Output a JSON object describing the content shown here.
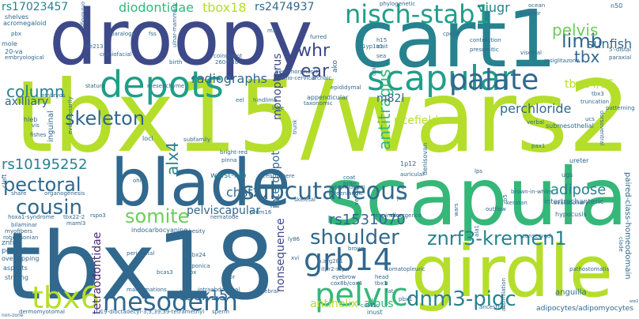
{
  "palette": {
    "yellow_green": "#b5de2b",
    "light_green": "#6ccd5a",
    "green": "#35b779",
    "teal": "#1f9e89",
    "blue_teal": "#26828e",
    "blue": "#31688e",
    "indigo": "#3e4989",
    "purple": "#482878",
    "dark_purple": "#440154"
  },
  "words": [
    {
      "text": "tbx15/wars2",
      "color": "#b5de2b"
    },
    {
      "text": "scapula",
      "color": "#35b779"
    },
    {
      "text": "tbx18",
      "color": "#31688e"
    },
    {
      "text": "droopy",
      "color": "#3e4989"
    },
    {
      "text": "cart1",
      "color": "#26828e"
    },
    {
      "text": "blade",
      "color": "#31688e"
    },
    {
      "text": "girdle",
      "color": "#b5de2b"
    },
    {
      "text": "depots",
      "color": "#1f9e89"
    },
    {
      "text": "scapular",
      "color": "#1f9e89"
    },
    {
      "text": "nisch-stab1",
      "color": "#1f9e89"
    },
    {
      "text": "palate",
      "color": "#31688e"
    },
    {
      "text": "subcutaneous",
      "color": "#31688e"
    },
    {
      "text": "mesoderm",
      "color": "#31688e"
    },
    {
      "text": "pelvic",
      "color": "#35b779"
    },
    {
      "text": "grb14",
      "color": "#31688e"
    },
    {
      "text": "tbx6",
      "color": "#b5de2b"
    },
    {
      "text": "shoulder",
      "color": "#31688e"
    },
    {
      "text": "znrf3-kremen1",
      "color": "#26828e"
    },
    {
      "text": "dnm3-pigc",
      "color": "#26828e"
    },
    {
      "text": "cousin",
      "color": "#31688e"
    },
    {
      "text": "pectoral",
      "color": "#31688e"
    },
    {
      "text": "somite",
      "color": "#6ccd5a"
    },
    {
      "text": "skeleton",
      "color": "#31688e"
    },
    {
      "text": "column",
      "color": "#26828e"
    },
    {
      "text": "limb",
      "color": "#31688e"
    },
    {
      "text": "pelvis",
      "color": "#6ccd5a"
    },
    {
      "text": "whr",
      "color": "#3e4989"
    },
    {
      "text": "ear",
      "color": "#3e4989"
    },
    {
      "text": "radiographs",
      "color": "#31688e"
    },
    {
      "text": "tbx",
      "color": "#31688e"
    },
    {
      "text": "sunfish",
      "color": "#31688e"
    },
    {
      "text": "antitragus",
      "color": "#35b779"
    },
    {
      "text": "adipose",
      "color": "#26828e"
    },
    {
      "text": "alx4",
      "color": "#26828e"
    },
    {
      "text": "chst2",
      "color": "#31688e"
    },
    {
      "text": "tbox15",
      "color": "#31688e"
    },
    {
      "text": "rs10195252",
      "color": "#26828e"
    },
    {
      "text": "rs1531070",
      "color": "#31688e"
    },
    {
      "text": "rs17023457",
      "color": "#26828e"
    },
    {
      "text": "diodontidae",
      "color": "#35b779"
    },
    {
      "text": "tbox18",
      "color": "#b5de2b"
    },
    {
      "text": "rs2474937",
      "color": "#31688e"
    },
    {
      "text": "viugr",
      "color": "#26828e"
    },
    {
      "text": "m82l",
      "color": "#31688e"
    },
    {
      "text": "tbx14/15",
      "color": "#b5de2b"
    },
    {
      "text": "perchloride",
      "color": "#31688e"
    },
    {
      "text": "ricefield",
      "color": "#b5de2b"
    },
    {
      "text": "axilliary",
      "color": "#31688e"
    },
    {
      "text": "pelviscapular",
      "color": "#31688e"
    },
    {
      "text": "nonsequence",
      "color": "#3e4989"
    },
    {
      "text": "tetraodontidae",
      "color": "#482878"
    },
    {
      "text": "antihelix",
      "color": "#b5de2b"
    },
    {
      "text": "albus",
      "color": "#35b779"
    },
    {
      "text": "interdepot",
      "color": "#31688e"
    },
    {
      "text": "monopterus",
      "color": "#3e4989"
    },
    {
      "text": "waist-hip",
      "color": "#26828e"
    },
    {
      "text": "acromegaloid",
      "color": "#31688e"
    },
    {
      "text": "shelves",
      "color": "#31688e"
    },
    {
      "text": "orthologs",
      "color": "#31688e"
    },
    {
      "text": "paralogy",
      "color": "#31688e"
    },
    {
      "text": "craniofacial",
      "color": "#31688e"
    },
    {
      "text": "nfe213",
      "color": "#31688e"
    },
    {
      "text": "mole",
      "color": "#31688e"
    },
    {
      "text": "20-va",
      "color": "#31688e"
    },
    {
      "text": "embryological",
      "color": "#31688e"
    },
    {
      "text": "stature",
      "color": "#31688e"
    },
    {
      "text": "mesenchyme",
      "color": "#31688e"
    },
    {
      "text": "birth",
      "color": "#31688e"
    },
    {
      "text": "embryos",
      "color": "#31688e"
    },
    {
      "text": "inguinal",
      "color": "#31688e"
    },
    {
      "text": "hleb",
      "color": "#31688e"
    },
    {
      "text": "vis",
      "color": "#31688e"
    },
    {
      "text": "fishes",
      "color": "#31688e"
    },
    {
      "text": "evolutionarily",
      "color": "#31688e"
    },
    {
      "text": "loci",
      "color": "#31688e"
    },
    {
      "text": "subfamily",
      "color": "#31688e"
    },
    {
      "text": "hindlimb",
      "color": "#31688e"
    },
    {
      "text": "lobe",
      "color": "#31688e"
    },
    {
      "text": "eel",
      "color": "#31688e"
    },
    {
      "text": "appendicular",
      "color": "#31688e"
    },
    {
      "text": "taxonomic",
      "color": "#31688e"
    },
    {
      "text": "archaic",
      "color": "#31688e"
    },
    {
      "text": "epididymal",
      "color": "#31688e"
    },
    {
      "text": "coincident",
      "color": "#31688e"
    },
    {
      "text": "260-fold",
      "color": "#31688e"
    },
    {
      "text": "share",
      "color": "#31688e"
    },
    {
      "text": "organogenesis",
      "color": "#31688e"
    },
    {
      "text": "hoxa1-syndrome",
      "color": "#31688e"
    },
    {
      "text": "tbx22-2",
      "color": "#31688e"
    },
    {
      "text": "maml3",
      "color": "#31688e"
    },
    {
      "text": "bilaminar",
      "color": "#31688e"
    },
    {
      "text": "myofibers",
      "color": "#31688e"
    },
    {
      "text": "robertsonian",
      "color": "#31688e"
    },
    {
      "text": "rspo3",
      "color": "#31688e"
    },
    {
      "text": "indocarbocyanine",
      "color": "#31688e"
    },
    {
      "text": "obesity",
      "color": "#31688e"
    },
    {
      "text": "nematode",
      "color": "#31688e"
    },
    {
      "text": "prdm16",
      "color": "#31688e"
    },
    {
      "text": "ly86",
      "color": "#31688e"
    },
    {
      "text": "p.arg281",
      "color": "#31688e"
    },
    {
      "text": "znfr3",
      "color": "#31688e"
    },
    {
      "text": "posterior",
      "color": "#31688e"
    },
    {
      "text": "overlapping",
      "color": "#31688e"
    },
    {
      "text": "aspects",
      "color": "#31688e"
    },
    {
      "text": "striving",
      "color": "#31688e"
    },
    {
      "text": "tbx24",
      "color": "#31688e"
    },
    {
      "text": "bcas3",
      "color": "#31688e"
    },
    {
      "text": "cpx",
      "color": "#31688e"
    },
    {
      "text": "malformations",
      "color": "#31688e"
    },
    {
      "text": "intraabdominal",
      "color": "#31688e"
    },
    {
      "text": "vertebral",
      "color": "#31688e"
    },
    {
      "text": "1,19-dioctadecyl-3,3,39,39-tetramethyl",
      "color": "#31688e"
    },
    {
      "text": "dermomyotomal",
      "color": "#31688e"
    },
    {
      "text": "itpr2-sspn",
      "color": "#31688e"
    },
    {
      "text": "head",
      "color": "#31688e"
    },
    {
      "text": "somatopleuric",
      "color": "#31688e"
    },
    {
      "text": "cox8b/cox4",
      "color": "#31688e"
    },
    {
      "text": "tbx1",
      "color": "#31688e"
    },
    {
      "text": "fat",
      "color": "#31688e"
    },
    {
      "text": "pbx1",
      "color": "#31688e"
    },
    {
      "text": "c.841c",
      "color": "#31688e"
    },
    {
      "text": "ancestral",
      "color": "#31688e"
    },
    {
      "text": "inust",
      "color": "#31688e"
    },
    {
      "text": "adipocytes/adipomyocytes",
      "color": "#31688e"
    },
    {
      "text": "anguilla",
      "color": "#31688e"
    },
    {
      "text": "hypocusis",
      "color": "#31688e"
    },
    {
      "text": "evolutionary",
      "color": "#31688e"
    },
    {
      "text": "intertrochanteric",
      "color": "#31688e"
    },
    {
      "text": "rb5",
      "color": "#31688e"
    },
    {
      "text": "brown-in-white",
      "color": "#31688e"
    },
    {
      "text": "ugs",
      "color": "#31688e"
    },
    {
      "text": "ureter",
      "color": "#31688e"
    },
    {
      "text": "pax1",
      "color": "#31688e"
    },
    {
      "text": "submesothelial",
      "color": "#31688e"
    },
    {
      "text": "dorsoventral",
      "color": "#31688e"
    },
    {
      "text": "paired-class-homeodomain",
      "color": "#31688e"
    },
    {
      "text": "rosiglitazone",
      "color": "#31688e"
    },
    {
      "text": "visceral",
      "color": "#31688e"
    },
    {
      "text": "5'-distal",
      "color": "#31688e"
    },
    {
      "text": "paraxial",
      "color": "#31688e"
    },
    {
      "text": "n50",
      "color": "#31688e"
    },
    {
      "text": "ocean",
      "color": "#31688e"
    },
    {
      "text": "anterior",
      "color": "#31688e"
    },
    {
      "text": "cpeb4",
      "color": "#31688e"
    },
    {
      "text": "contraction",
      "color": "#31688e"
    },
    {
      "text": "presomitic",
      "color": "#31688e"
    },
    {
      "text": "1yp1a1",
      "color": "#31688e"
    },
    {
      "text": "h15",
      "color": "#31688e"
    },
    {
      "text": "trait",
      "color": "#31688e"
    },
    {
      "text": "furred",
      "color": "#31688e"
    },
    {
      "text": "mx",
      "color": "#31688e"
    },
    {
      "text": "fss",
      "color": "#31688e"
    },
    {
      "text": "pbx",
      "color": "#31688e"
    },
    {
      "text": "ako",
      "color": "#31688e"
    },
    {
      "text": "1p12",
      "color": "#31688e"
    },
    {
      "text": "auricular",
      "color": "#31688e"
    },
    {
      "text": "coat",
      "color": "#31688e"
    },
    {
      "text": "brite",
      "color": "#31688e"
    },
    {
      "text": "stomodeum",
      "color": "#31688e"
    },
    {
      "text": "greenlandic",
      "color": "#31688e"
    },
    {
      "text": "denisovan",
      "color": "#31688e"
    },
    {
      "text": "skeletal",
      "color": "#31688e"
    },
    {
      "text": "respiration",
      "color": "#31688e"
    },
    {
      "text": "divergence",
      "color": "#31688e"
    },
    {
      "text": "wars",
      "color": "#31688e"
    },
    {
      "text": "outflow",
      "color": "#31688e"
    },
    {
      "text": "jaw",
      "color": "#31688e"
    },
    {
      "text": "vendas",
      "color": "#31688e"
    },
    {
      "text": "phylogenetic",
      "color": "#31688e"
    },
    {
      "text": "xvi",
      "color": "#31688e"
    },
    {
      "text": "periductal",
      "color": "#31688e"
    },
    {
      "text": "japonica",
      "color": "#31688e"
    },
    {
      "text": "color",
      "color": "#31688e"
    },
    {
      "text": "eyebrow",
      "color": "#31688e"
    },
    {
      "text": "brown",
      "color": "#31688e"
    },
    {
      "text": "sperm",
      "color": "#31688e"
    },
    {
      "text": "lps",
      "color": "#31688e"
    },
    {
      "text": "centromere",
      "color": "#31688e"
    },
    {
      "text": "sea",
      "color": "#31688e"
    },
    {
      "text": "ala1",
      "color": "#31688e"
    },
    {
      "text": "patterning",
      "color": "#31688e"
    },
    {
      "text": "non-zone",
      "color": "#31688e"
    },
    {
      "text": "cleft",
      "color": "#31688e"
    },
    {
      "text": "onim",
      "color": "#31688e"
    },
    {
      "text": "ulnar-mammary",
      "color": "#31688e"
    },
    {
      "text": "pedomorphosis",
      "color": "#31688e"
    },
    {
      "text": "cranio-cervical",
      "color": "#31688e"
    },
    {
      "text": "trunk",
      "color": "#31688e"
    },
    {
      "text": "ohno",
      "color": "#31688e"
    },
    {
      "text": "bright-red",
      "color": "#31688e"
    },
    {
      "text": "pinna",
      "color": "#31688e"
    },
    {
      "text": "ww2",
      "color": "#31688e"
    },
    {
      "text": "conserved",
      "color": "#31688e"
    },
    {
      "text": "truncation",
      "color": "#31688e"
    },
    {
      "text": "tbx3",
      "color": "#31688e"
    },
    {
      "text": "pathostomatis",
      "color": "#31688e"
    },
    {
      "text": "clade",
      "color": "#31688e"
    },
    {
      "text": "assimilation",
      "color": "#31688e"
    },
    {
      "text": "keratan",
      "color": "#31688e"
    },
    {
      "text": "ucs",
      "color": "#31688e"
    },
    {
      "text": "verbal",
      "color": "#31688e"
    },
    {
      "text": "periurethral",
      "color": "#31688e"
    },
    {
      "text": "lobes",
      "color": "#31688e"
    }
  ]
}
